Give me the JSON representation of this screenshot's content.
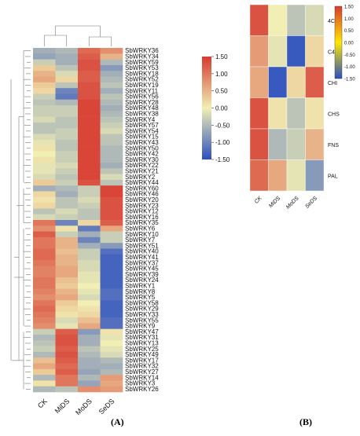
{
  "panel_labels": {
    "a": "(A)",
    "b": "(B)"
  },
  "colors": {
    "low": "#2b4fbf",
    "mid": "#f1efb4",
    "high": "#d73a2f"
  },
  "chart_data": [
    {
      "type": "heatmap",
      "panel": "(A)",
      "title": "",
      "xlabel": "",
      "ylabel": "",
      "columns": [
        "CK",
        "MiDS",
        "MoDS",
        "SeDS"
      ],
      "rows": [
        "SbWRKY36",
        "SbWRKY34",
        "SbWRKY59",
        "SbWRKY53",
        "SbWRKY18",
        "SbWRKY52",
        "SbWRKY19",
        "SbWRKY11",
        "SbWRKY56",
        "SbWRKY28",
        "SbWRKY48",
        "SbWRKY38",
        "SbWRKY4",
        "SbWRKY57",
        "SbWRKY54",
        "SbWRKY15",
        "SbWRKY43",
        "SbWRKY50",
        "SbWRKY42",
        "SbWRKY30",
        "SbWRKY22",
        "SbWRKY21",
        "SbWRKY2",
        "SbWRKY44",
        "SbWRKY60",
        "SbWRKY46",
        "SbWRKY20",
        "SbWRKY23",
        "SbWRKY12",
        "SbWRKY16",
        "SbWRKY35",
        "SbWRKY6",
        "SbWRKY10",
        "SbWRKY7",
        "SbWRKY51",
        "SbWRKY40",
        "SbWRKY41",
        "SbWRKY37",
        "SbWRKY45",
        "SbWRKY39",
        "SbWRKY24",
        "SbWRKY1",
        "SbWRKY8",
        "SbWRKY5",
        "SbWRKY58",
        "SbWRKY29",
        "SbWRKY33",
        "SbWRKY55",
        "SbWRKY9",
        "SbWRKY47",
        "SbWRKY31",
        "SbWRKY13",
        "SbWRKY25",
        "SbWRKY49",
        "SbWRKY17",
        "SbWRKY32",
        "SbWRKY27",
        "SbWRKY14",
        "SbWRKY3",
        "SbWRKY26"
      ],
      "values": [
        [
          -0.6,
          -0.5,
          1.1,
          0.8
        ],
        [
          -0.7,
          -0.6,
          1.2,
          0.5
        ],
        [
          -0.3,
          -0.6,
          1.3,
          -0.5
        ],
        [
          0.3,
          -0.4,
          1.3,
          -0.8
        ],
        [
          0.5,
          -0.2,
          1.2,
          -0.6
        ],
        [
          0.6,
          0.2,
          1.2,
          -0.5
        ],
        [
          0.3,
          -0.4,
          1.3,
          -0.4
        ],
        [
          0.2,
          -1.0,
          1.3,
          -0.6
        ],
        [
          -0.3,
          -1.1,
          1.3,
          -0.4
        ],
        [
          -0.4,
          -0.5,
          1.4,
          -0.5
        ],
        [
          -0.3,
          -0.3,
          1.4,
          -0.6
        ],
        [
          -0.3,
          -0.3,
          1.4,
          -0.5
        ],
        [
          -0.2,
          -0.4,
          1.4,
          -0.4
        ],
        [
          -0.4,
          -0.4,
          1.4,
          -0.3
        ],
        [
          -0.4,
          -0.3,
          1.4,
          -0.2
        ],
        [
          -0.2,
          -0.3,
          1.4,
          -0.4
        ],
        [
          -0.1,
          -0.4,
          1.4,
          -0.4
        ],
        [
          0.1,
          -0.4,
          1.4,
          -0.5
        ],
        [
          0.0,
          -0.3,
          1.4,
          -0.5
        ],
        [
          0.1,
          -0.3,
          1.4,
          -0.5
        ],
        [
          -0.1,
          -0.2,
          1.4,
          -0.6
        ],
        [
          -0.1,
          -0.3,
          1.4,
          -0.4
        ],
        [
          -0.2,
          -0.4,
          1.4,
          -0.2
        ],
        [
          0.3,
          -0.3,
          1.3,
          -0.4
        ],
        [
          -0.6,
          -0.5,
          -0.3,
          1.4
        ],
        [
          0.2,
          -0.6,
          -0.3,
          1.4
        ],
        [
          0.1,
          -0.4,
          -0.2,
          1.3
        ],
        [
          0.2,
          -0.4,
          -0.3,
          1.3
        ],
        [
          -0.4,
          -0.2,
          -0.4,
          1.3
        ],
        [
          -0.2,
          -0.3,
          -0.4,
          1.3
        ],
        [
          1.0,
          -1.0,
          0.2,
          1.2
        ],
        [
          0.8,
          0.1,
          -1.1,
          0.6
        ],
        [
          1.2,
          -0.3,
          -0.6,
          -0.3
        ],
        [
          1.0,
          0.5,
          -1.0,
          -0.3
        ],
        [
          1.0,
          0.5,
          -0.6,
          -0.8
        ],
        [
          1.1,
          0.4,
          -0.3,
          -1.2
        ],
        [
          1.1,
          0.5,
          -0.3,
          -1.3
        ],
        [
          1.0,
          0.5,
          -0.2,
          -1.3
        ],
        [
          0.9,
          0.6,
          -0.2,
          -1.3
        ],
        [
          0.9,
          0.6,
          -0.1,
          -1.3
        ],
        [
          1.0,
          0.4,
          -0.1,
          -1.3
        ],
        [
          1.0,
          0.3,
          0.0,
          -1.3
        ],
        [
          0.9,
          0.5,
          -0.1,
          -1.2
        ],
        [
          0.8,
          0.6,
          -0.2,
          -1.2
        ],
        [
          1.0,
          0.3,
          0.0,
          -1.3
        ],
        [
          1.1,
          0.2,
          0.1,
          -1.3
        ],
        [
          1.0,
          0.1,
          0.2,
          -1.3
        ],
        [
          0.9,
          -0.2,
          0.4,
          -1.2
        ],
        [
          0.8,
          -0.1,
          0.6,
          -1.2
        ],
        [
          -0.3,
          1.2,
          -0.8,
          0.1
        ],
        [
          -0.5,
          1.3,
          -0.6,
          -0.1
        ],
        [
          -0.4,
          1.3,
          -0.6,
          0.0
        ],
        [
          -0.3,
          1.2,
          -0.4,
          -0.1
        ],
        [
          -0.5,
          1.3,
          -0.5,
          -0.2
        ],
        [
          0.4,
          1.2,
          -0.6,
          -0.5
        ],
        [
          0.6,
          1.1,
          -0.6,
          -0.6
        ],
        [
          0.3,
          1.2,
          -0.7,
          -0.5
        ],
        [
          -0.5,
          1.0,
          -0.5,
          0.7
        ],
        [
          0.1,
          1.0,
          -0.7,
          0.6
        ],
        [
          -0.5,
          -0.4,
          0.8,
          0.7
        ]
      ],
      "colorbar": {
        "ticks": [
          "1.50",
          "1.00",
          "0.50",
          "0.00",
          "-0.50",
          "-1.00",
          "-1.50"
        ],
        "range": [
          -1.5,
          1.5
        ]
      }
    },
    {
      "type": "heatmap",
      "panel": "(B)",
      "title": "",
      "xlabel": "",
      "ylabel": "",
      "columns": [
        "CK",
        "MiDS",
        "MoDS",
        "SeDS"
      ],
      "rows": [
        "4CL",
        "C4H",
        "CHI",
        "CHS",
        "FNS",
        "PAL"
      ],
      "values": [
        [
          1.3,
          0.0,
          -0.4,
          -0.2
        ],
        [
          0.7,
          -0.1,
          -1.4,
          0.2
        ],
        [
          0.6,
          -1.4,
          0.2,
          1.2
        ],
        [
          1.3,
          0.1,
          -0.4,
          0.1
        ],
        [
          1.3,
          -0.5,
          -0.3,
          0.5
        ],
        [
          1.1,
          0.6,
          -0.1,
          -0.8
        ]
      ],
      "colorbar": {
        "ticks": [
          "1.50",
          "1.00",
          "0.50",
          "0.00",
          "-0.50",
          "-1.00",
          "-1.50"
        ],
        "range": [
          -1.5,
          1.5
        ]
      }
    }
  ]
}
